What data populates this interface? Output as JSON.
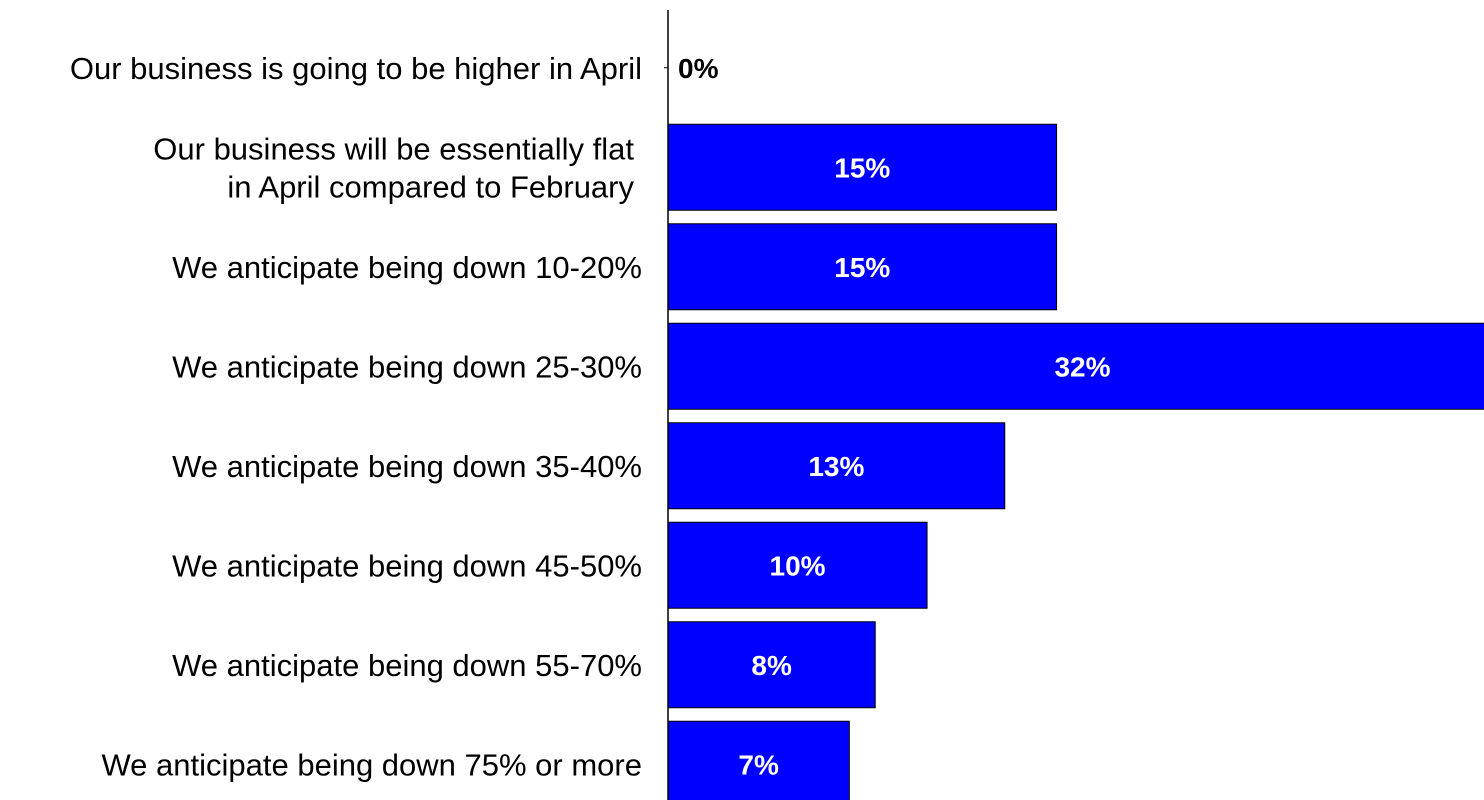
{
  "chart_data": {
    "type": "bar",
    "orientation": "horizontal",
    "categories": [
      [
        "Our business is going to be higher in April"
      ],
      [
        "Our business will be essentially flat",
        "in April compared to February"
      ],
      [
        "We anticipate being down 10-20%"
      ],
      [
        "We anticipate being down 25-30%"
      ],
      [
        "We anticipate being down 35-40%"
      ],
      [
        "We anticipate being down 45-50%"
      ],
      [
        "We anticipate being down 55-70%"
      ],
      [
        "We anticipate being down 75% or more"
      ]
    ],
    "values": [
      0,
      15,
      15,
      32,
      13,
      10,
      8,
      7
    ],
    "value_labels": [
      "0%",
      "15%",
      "15%",
      "32%",
      "13%",
      "10%",
      "8%",
      "7%"
    ],
    "title": "",
    "xlabel": "",
    "ylabel": "",
    "xlim": [
      0,
      31.5
    ],
    "grid": false,
    "legend": "none",
    "bar_color": "#0000FF",
    "bar_label_color": "#FFFFFF",
    "zero_label_color": "#000000"
  }
}
